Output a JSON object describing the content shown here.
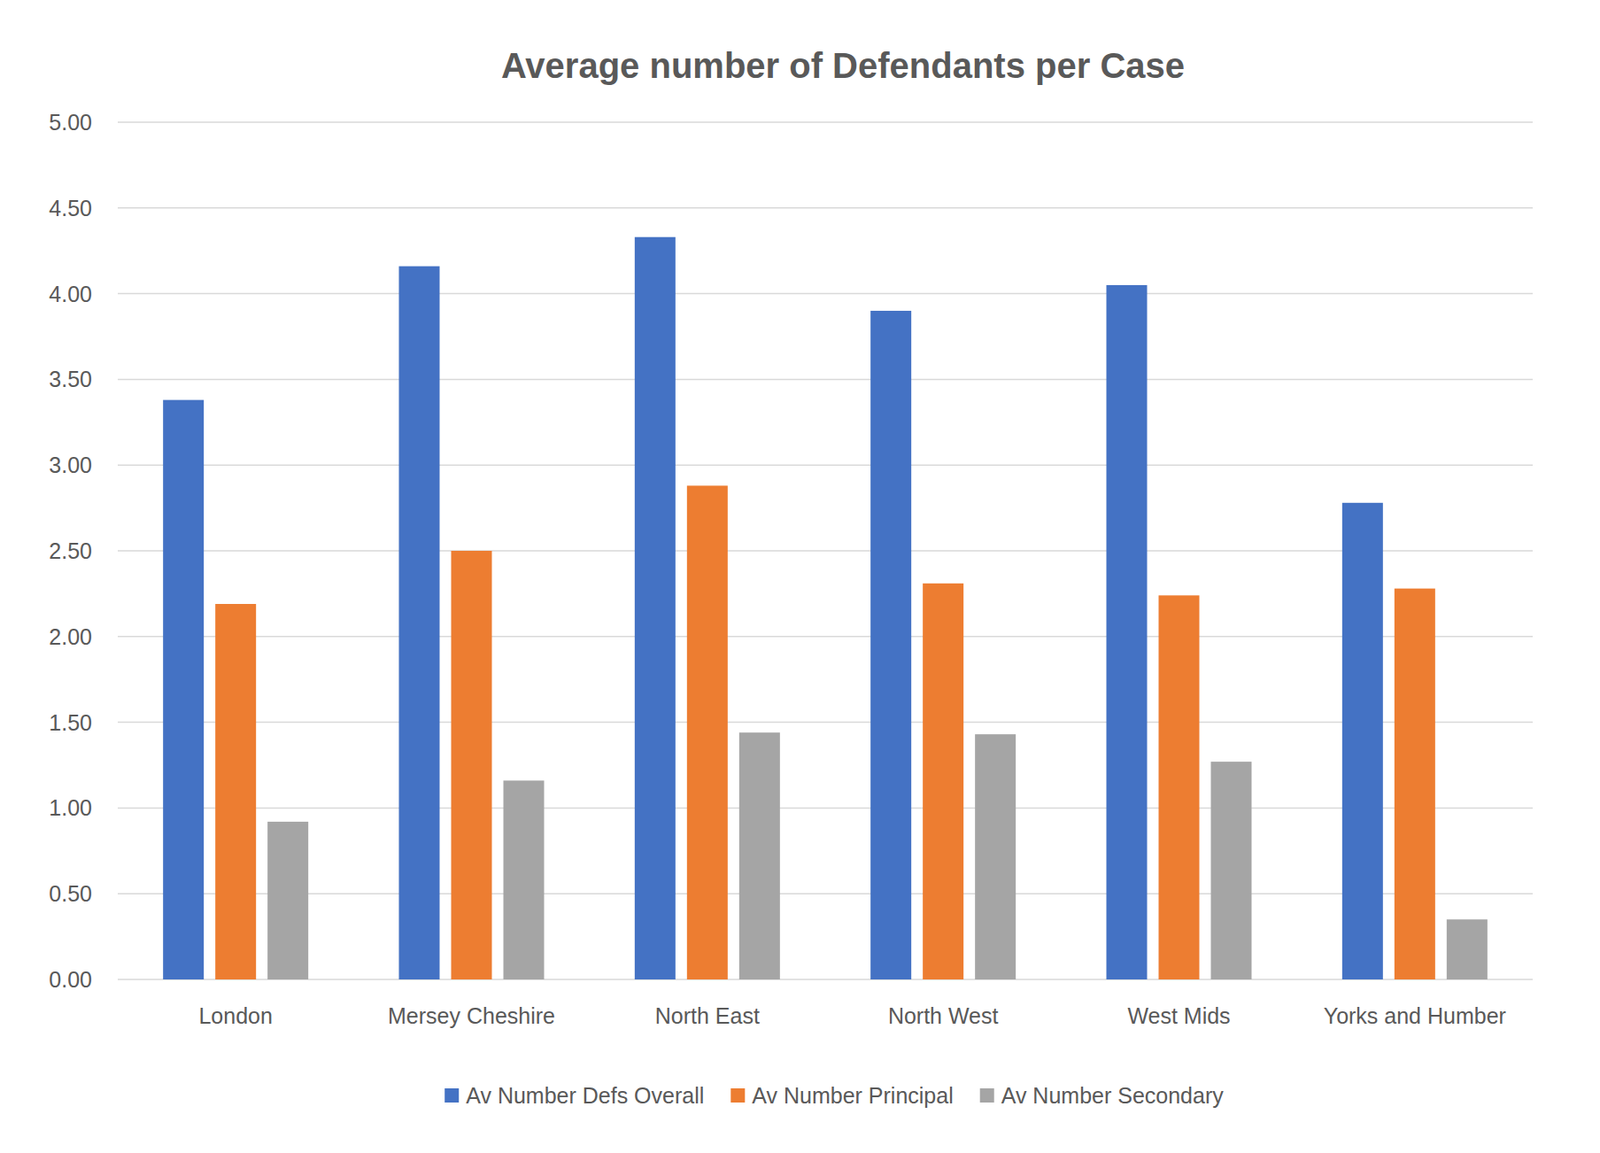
{
  "chart_data": {
    "type": "bar",
    "title": "Average number of Defendants per Case",
    "categories": [
      "London",
      "Mersey Cheshire",
      "North East",
      "North West",
      "West Mids",
      "Yorks and Humber"
    ],
    "series": [
      {
        "name": "Av Number Defs Overall",
        "color": "#4472c4",
        "values": [
          3.38,
          4.16,
          4.33,
          3.9,
          4.05,
          2.78
        ]
      },
      {
        "name": "Av Number Principal",
        "color": "#ed7d31",
        "values": [
          2.19,
          2.5,
          2.88,
          2.31,
          2.24,
          2.28
        ]
      },
      {
        "name": "Av Number Secondary",
        "color": "#a5a5a5",
        "values": [
          0.92,
          1.16,
          1.44,
          1.43,
          1.27,
          0.35
        ]
      }
    ],
    "ylim": [
      0,
      5
    ],
    "yticks": [
      {
        "value": 0,
        "label": "0.00"
      },
      {
        "value": 0.5,
        "label": "0.50"
      },
      {
        "value": 1,
        "label": "1.00"
      },
      {
        "value": 1.5,
        "label": "1.50"
      },
      {
        "value": 2,
        "label": "2.00"
      },
      {
        "value": 2.5,
        "label": "2.50"
      },
      {
        "value": 3,
        "label": "3.00"
      },
      {
        "value": 3.5,
        "label": "3.50"
      },
      {
        "value": 4,
        "label": "4.00"
      },
      {
        "value": 4.5,
        "label": "4.50"
      },
      {
        "value": 5,
        "label": "5.00"
      }
    ],
    "grid": true,
    "legend": "bottom"
  }
}
